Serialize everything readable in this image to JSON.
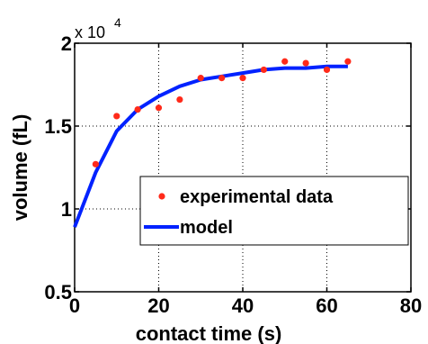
{
  "chart_data": {
    "type": "scatter+line",
    "xlabel": "contact time (s)",
    "ylabel": "volume (fL)",
    "xlim": [
      0,
      80
    ],
    "ylim": [
      0.5,
      2
    ],
    "xticks": [
      "0",
      "20",
      "40",
      "60",
      "80"
    ],
    "yticks": [
      "0.5",
      "1",
      "1.5",
      "2"
    ],
    "y_multiplier": {
      "base": "x 10",
      "exponent": "4"
    },
    "grid": true,
    "legend_position": "center-right",
    "series": [
      {
        "name": "experimental data",
        "kind": "scatter",
        "color": "#ff2a1a",
        "x": [
          5,
          10,
          15,
          20,
          25,
          30,
          35,
          40,
          45,
          50,
          55,
          60,
          65
        ],
        "y": [
          1.27,
          1.56,
          1.6,
          1.61,
          1.66,
          1.79,
          1.79,
          1.79,
          1.84,
          1.89,
          1.88,
          1.84,
          1.89
        ]
      },
      {
        "name": "model",
        "kind": "line",
        "color": "#0022ff",
        "x": [
          0,
          5,
          10,
          15,
          20,
          25,
          30,
          35,
          40,
          45,
          50,
          55,
          60,
          65
        ],
        "y": [
          0.89,
          1.22,
          1.47,
          1.6,
          1.68,
          1.74,
          1.78,
          1.8,
          1.82,
          1.84,
          1.85,
          1.85,
          1.86,
          1.86
        ]
      }
    ]
  }
}
